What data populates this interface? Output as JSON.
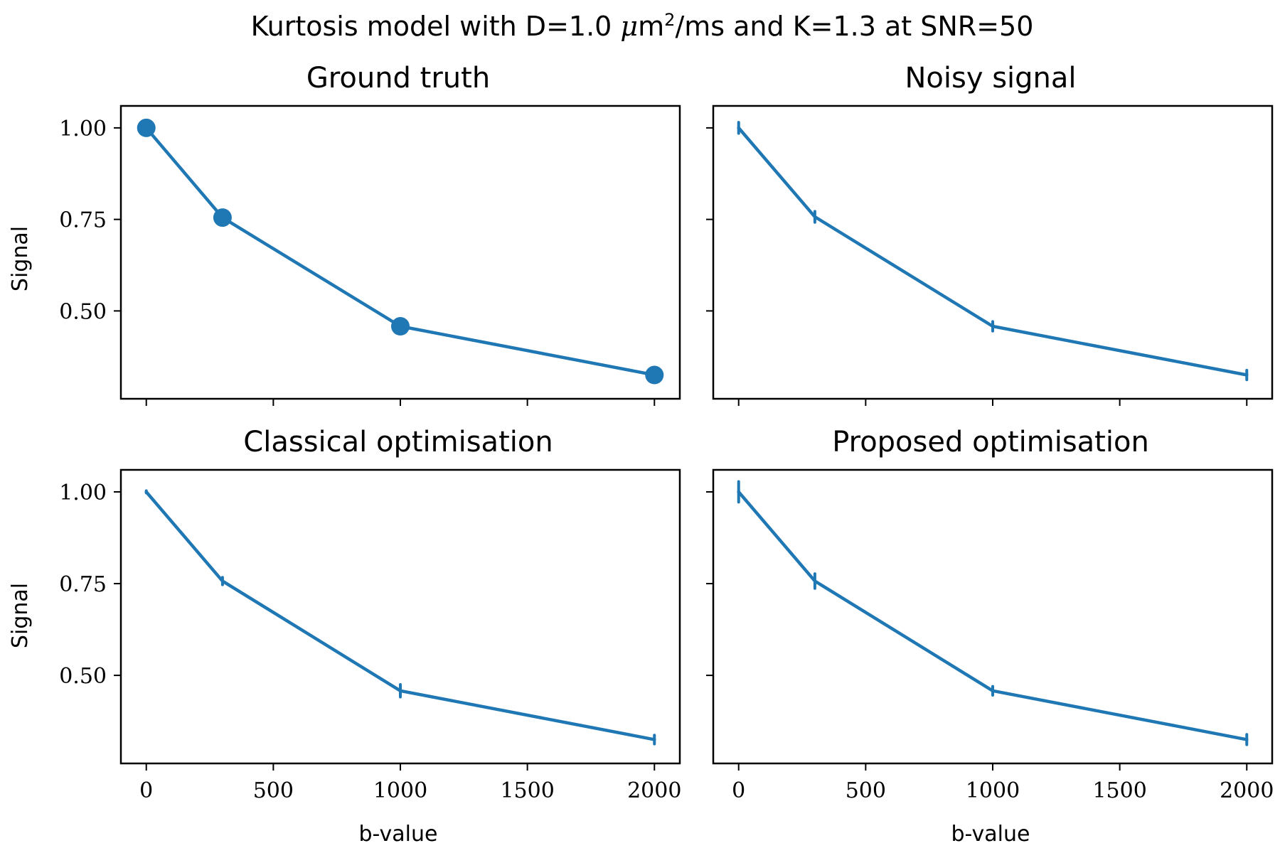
{
  "figure": {
    "suptitle_pre": "Kurtosis model with D=1.0 ",
    "suptitle_mu": "μ",
    "suptitle_unit": "m",
    "suptitle_sup": "2",
    "suptitle_post": "/ms and K=1.3 at SNR=50"
  },
  "colors": {
    "series": "#1f77b4",
    "axes": "#000000",
    "background": "#ffffff"
  },
  "chart_data": [
    {
      "type": "line",
      "title": "Ground truth",
      "xlabel": "",
      "ylabel": "Signal",
      "markers": "circle",
      "x": [
        0,
        300,
        1000,
        2000
      ],
      "y": [
        1.0,
        0.755,
        0.458,
        0.325
      ],
      "yerr": [
        0,
        0,
        0,
        0
      ],
      "xlim": [
        -100,
        2100
      ],
      "ylim": [
        0.26,
        1.06
      ],
      "xticks": [
        0,
        500,
        1000,
        1500,
        2000
      ],
      "yticks": [
        0.5,
        0.75,
        1.0
      ],
      "xtick_labels": [
        "",
        "",
        "",
        "",
        ""
      ],
      "ytick_labels": [
        "0.50",
        "0.75",
        "1.00"
      ]
    },
    {
      "type": "line",
      "title": "Noisy signal",
      "xlabel": "",
      "ylabel": "",
      "markers": "none",
      "x": [
        0,
        300,
        1000,
        2000
      ],
      "y": [
        1.0,
        0.757,
        0.458,
        0.325
      ],
      "yerr": [
        0.015,
        0.015,
        0.013,
        0.013
      ],
      "xlim": [
        -100,
        2100
      ],
      "ylim": [
        0.26,
        1.06
      ],
      "xticks": [
        0,
        500,
        1000,
        1500,
        2000
      ],
      "yticks": [
        0.5,
        0.75,
        1.0
      ],
      "xtick_labels": [
        "",
        "",
        "",
        "",
        ""
      ],
      "ytick_labels": [
        "",
        "",
        ""
      ]
    },
    {
      "type": "line",
      "title": "Classical optimisation",
      "xlabel": "b-value",
      "ylabel": "Signal",
      "markers": "none",
      "x": [
        0,
        300,
        1000,
        2000
      ],
      "y": [
        1.0,
        0.757,
        0.458,
        0.325
      ],
      "yerr": [
        0.003,
        0.01,
        0.017,
        0.012
      ],
      "xlim": [
        -100,
        2100
      ],
      "ylim": [
        0.26,
        1.06
      ],
      "xticks": [
        0,
        500,
        1000,
        1500,
        2000
      ],
      "yticks": [
        0.5,
        0.75,
        1.0
      ],
      "xtick_labels": [
        "0",
        "500",
        "1000",
        "1500",
        "2000"
      ],
      "ytick_labels": [
        "0.50",
        "0.75",
        "1.00"
      ]
    },
    {
      "type": "line",
      "title": "Proposed optimisation",
      "xlabel": "b-value",
      "ylabel": "",
      "markers": "none",
      "x": [
        0,
        300,
        1000,
        2000
      ],
      "y": [
        1.0,
        0.757,
        0.458,
        0.325
      ],
      "yerr": [
        0.028,
        0.02,
        0.012,
        0.014
      ],
      "xlim": [
        -100,
        2100
      ],
      "ylim": [
        0.26,
        1.06
      ],
      "xticks": [
        0,
        500,
        1000,
        1500,
        2000
      ],
      "yticks": [
        0.5,
        0.75,
        1.0
      ],
      "xtick_labels": [
        "0",
        "500",
        "1000",
        "1500",
        "2000"
      ],
      "ytick_labels": [
        "",
        "",
        ""
      ]
    }
  ]
}
